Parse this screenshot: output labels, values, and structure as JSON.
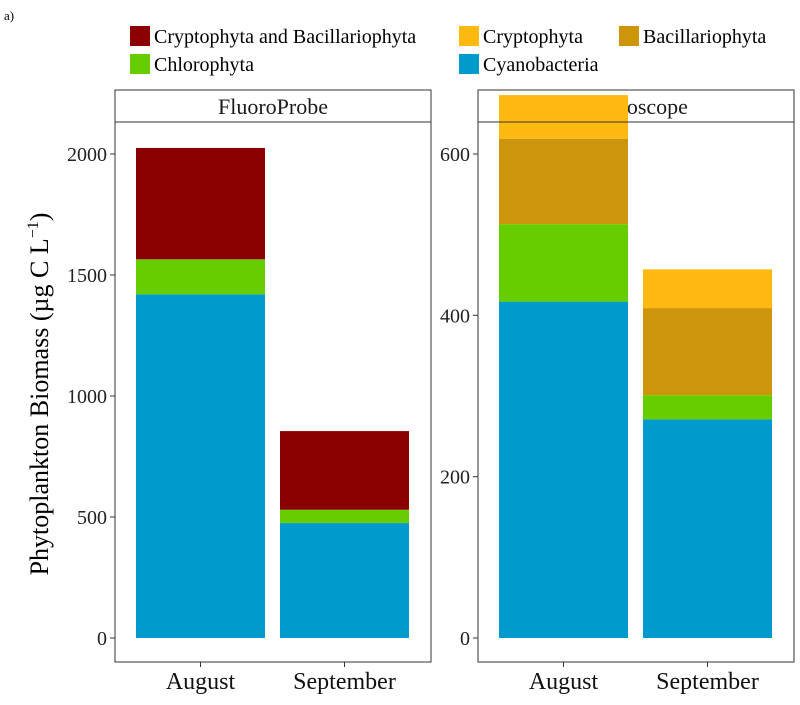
{
  "figure_label": "a)",
  "ylabel": "Phytoplankton Biomass (µg C L",
  "ylabel_sup": "−1",
  "ylabel_close": ")",
  "legend": [
    {
      "name": "Cryptophyta and Bacillariophyta",
      "color": "#8b0000"
    },
    {
      "name": "Cryptophyta",
      "color": "#ffb90f"
    },
    {
      "name": "Bacillariophyta",
      "color": "#cd950c"
    },
    {
      "name": "Chlorophyta",
      "color": "#66cd00"
    },
    {
      "name": "Cyanobacteria",
      "color": "#009acd"
    }
  ],
  "chart_data": [
    {
      "type": "bar",
      "stacked": true,
      "title": "FluoroProbe",
      "categories": [
        "August",
        "September"
      ],
      "ylim": [
        0,
        2100
      ],
      "yticks": [
        0,
        500,
        1000,
        1500,
        2000
      ],
      "grid": false,
      "series": [
        {
          "name": "Cyanobacteria",
          "color": "#009acd",
          "values": [
            1420,
            475
          ]
        },
        {
          "name": "Chlorophyta",
          "color": "#66cd00",
          "values": [
            145,
            55
          ]
        },
        {
          "name": "Cryptophyta and Bacillariophyta",
          "color": "#8b0000",
          "values": [
            460,
            325
          ]
        }
      ]
    },
    {
      "type": "bar",
      "stacked": true,
      "title": "Microscope",
      "categories": [
        "August",
        "September"
      ],
      "ylim": [
        0,
        700
      ],
      "yticks": [
        0,
        200,
        400,
        600
      ],
      "grid": false,
      "series": [
        {
          "name": "Cyanobacteria",
          "color": "#009acd",
          "values": [
            417,
            271
          ]
        },
        {
          "name": "Chlorophyta",
          "color": "#66cd00",
          "values": [
            96,
            30
          ]
        },
        {
          "name": "Bacillariophyta",
          "color": "#cd950c",
          "values": [
            106,
            108
          ]
        },
        {
          "name": "Cryptophyta",
          "color": "#ffb90f",
          "values": [
            54,
            48
          ]
        }
      ]
    }
  ]
}
